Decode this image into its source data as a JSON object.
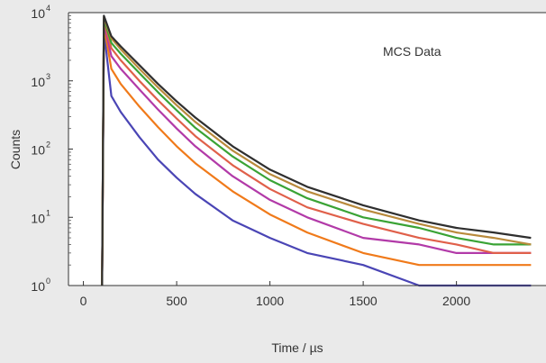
{
  "chart_data": {
    "type": "line",
    "annotation": "MCS Data",
    "xlabel": "Time / µs",
    "ylabel": "Counts",
    "x_scale": "linear",
    "y_scale": "log",
    "xlim": [
      -80,
      2480
    ],
    "ylim": [
      1,
      10000
    ],
    "x_ticks": [
      0,
      500,
      1000,
      1500,
      2000
    ],
    "x_tick_labels": [
      "0",
      "500",
      "1000",
      "1500",
      "2000"
    ],
    "y_ticks": [
      1,
      10,
      100,
      1000,
      10000
    ],
    "y_tick_base": "10",
    "y_tick_exponents": [
      "0",
      "1",
      "2",
      "3",
      "4"
    ],
    "grid": false,
    "legend": "none",
    "background": "#eaeaea",
    "plot_background": "#ffffff",
    "series": [
      {
        "color": "#2f2f2f",
        "x": [
          100,
          110,
          150,
          200,
          300,
          400,
          500,
          600,
          800,
          1000,
          1200,
          1500,
          1800,
          2000,
          2200,
          2400
        ],
        "y": [
          1,
          9000,
          4500,
          3200,
          1700,
          900,
          500,
          290,
          110,
          50,
          28,
          15,
          9,
          7,
          6,
          5
        ]
      },
      {
        "color": "#b98a3c",
        "x": [
          100,
          110,
          150,
          200,
          300,
          400,
          500,
          600,
          800,
          1000,
          1200,
          1500,
          1800,
          2000,
          2200,
          2400
        ],
        "y": [
          1,
          8500,
          4200,
          2900,
          1500,
          800,
          440,
          250,
          95,
          43,
          24,
          13,
          8,
          6,
          5,
          4
        ]
      },
      {
        "color": "#3aa335",
        "x": [
          100,
          110,
          150,
          200,
          300,
          400,
          500,
          600,
          800,
          1000,
          1200,
          1500,
          1800,
          2000,
          2200,
          2400
        ],
        "y": [
          1,
          8000,
          3600,
          2500,
          1300,
          680,
          370,
          205,
          78,
          35,
          19,
          10,
          7,
          5,
          4,
          4
        ]
      },
      {
        "color": "#e0604a",
        "x": [
          100,
          110,
          150,
          200,
          300,
          400,
          500,
          600,
          800,
          1000,
          1200,
          1500,
          1800,
          2000,
          2200,
          2400
        ],
        "y": [
          1,
          7500,
          3000,
          2000,
          1000,
          520,
          280,
          155,
          58,
          26,
          14,
          8,
          5,
          4,
          3,
          3
        ]
      },
      {
        "color": "#b23aa8",
        "x": [
          100,
          110,
          150,
          200,
          300,
          400,
          500,
          600,
          800,
          1000,
          1200,
          1500,
          1800,
          2000,
          2200,
          2400
        ],
        "y": [
          1,
          7000,
          2300,
          1500,
          750,
          380,
          200,
          110,
          40,
          18,
          10,
          5,
          4,
          3,
          3,
          3
        ]
      },
      {
        "color": "#f07a1a",
        "x": [
          100,
          110,
          150,
          200,
          300,
          400,
          500,
          600,
          800,
          1000,
          1200,
          1500,
          1800,
          2000,
          2200,
          2400
        ],
        "y": [
          1,
          6500,
          1500,
          900,
          420,
          210,
          110,
          62,
          24,
          11,
          6,
          3,
          2,
          2,
          2,
          2
        ]
      },
      {
        "color": "#4a45b5",
        "x": [
          100,
          110,
          150,
          200,
          300,
          400,
          500,
          600,
          800,
          1000,
          1200,
          1500,
          1800,
          2000,
          2200,
          2400
        ],
        "y": [
          1,
          5500,
          600,
          350,
          150,
          70,
          38,
          22,
          9,
          5,
          3,
          2,
          1,
          1,
          1,
          1
        ]
      }
    ]
  }
}
